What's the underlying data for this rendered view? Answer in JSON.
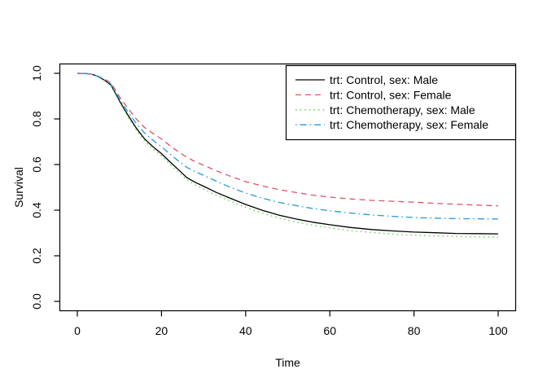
{
  "chart_data": {
    "type": "line",
    "title": "",
    "xlabel": "Time",
    "ylabel": "Survival",
    "xlim": [
      0,
      100
    ],
    "ylim": [
      0.0,
      1.0
    ],
    "x_ticks": [
      0,
      20,
      40,
      60,
      80,
      100
    ],
    "y_ticks": [
      "0.0",
      "0.2",
      "0.4",
      "0.6",
      "0.8",
      "1.0"
    ],
    "grid": false,
    "legend_position": "topright",
    "background": "#ffffff",
    "axis_color": "#000000",
    "x": [
      0,
      2,
      3,
      4,
      5,
      6,
      7,
      8,
      9,
      10,
      11,
      12,
      14,
      16,
      18,
      20,
      22,
      24,
      26,
      28,
      30,
      33,
      36,
      40,
      44,
      48,
      52,
      56,
      60,
      65,
      70,
      75,
      80,
      85,
      90,
      95,
      100
    ],
    "series": [
      {
        "name": "trt: Control, sex: Male",
        "color": "#000000",
        "linetype": "solid",
        "values": [
          1.0,
          0.999,
          0.997,
          0.993,
          0.985,
          0.975,
          0.963,
          0.948,
          0.915,
          0.88,
          0.848,
          0.818,
          0.76,
          0.712,
          0.678,
          0.648,
          0.612,
          0.578,
          0.543,
          0.522,
          0.505,
          0.478,
          0.455,
          0.425,
          0.399,
          0.378,
          0.361,
          0.347,
          0.336,
          0.324,
          0.315,
          0.309,
          0.304,
          0.301,
          0.298,
          0.297,
          0.296
        ]
      },
      {
        "name": "trt: Control, sex: Female",
        "color": "#DF536B",
        "linetype": "dashed",
        "values": [
          1.0,
          0.999,
          0.997,
          0.994,
          0.987,
          0.979,
          0.969,
          0.957,
          0.929,
          0.898,
          0.872,
          0.848,
          0.8,
          0.762,
          0.736,
          0.712,
          0.683,
          0.656,
          0.632,
          0.613,
          0.597,
          0.573,
          0.551,
          0.525,
          0.506,
          0.49,
          0.477,
          0.466,
          0.457,
          0.449,
          0.443,
          0.439,
          0.435,
          0.43,
          0.426,
          0.422,
          0.419
        ]
      },
      {
        "name": "trt: Chemotherapy, sex: Male",
        "color": "#61D04F",
        "linetype": "dotted",
        "values": [
          1.0,
          0.999,
          0.996,
          0.992,
          0.983,
          0.972,
          0.96,
          0.944,
          0.91,
          0.874,
          0.841,
          0.81,
          0.752,
          0.703,
          0.668,
          0.638,
          0.601,
          0.567,
          0.532,
          0.511,
          0.493,
          0.465,
          0.442,
          0.412,
          0.386,
          0.365,
          0.348,
          0.334,
          0.322,
          0.31,
          0.302,
          0.295,
          0.29,
          0.287,
          0.285,
          0.283,
          0.282
        ]
      },
      {
        "name": "trt: Chemotherapy, sex: Female",
        "color": "#2297E6",
        "linetype": "dotdash",
        "values": [
          1.0,
          0.999,
          0.997,
          0.993,
          0.986,
          0.977,
          0.966,
          0.952,
          0.921,
          0.888,
          0.859,
          0.832,
          0.78,
          0.738,
          0.706,
          0.678,
          0.646,
          0.616,
          0.588,
          0.569,
          0.553,
          0.527,
          0.503,
          0.475,
          0.452,
          0.434,
          0.42,
          0.407,
          0.397,
          0.387,
          0.379,
          0.373,
          0.368,
          0.365,
          0.363,
          0.362,
          0.361
        ]
      }
    ]
  }
}
